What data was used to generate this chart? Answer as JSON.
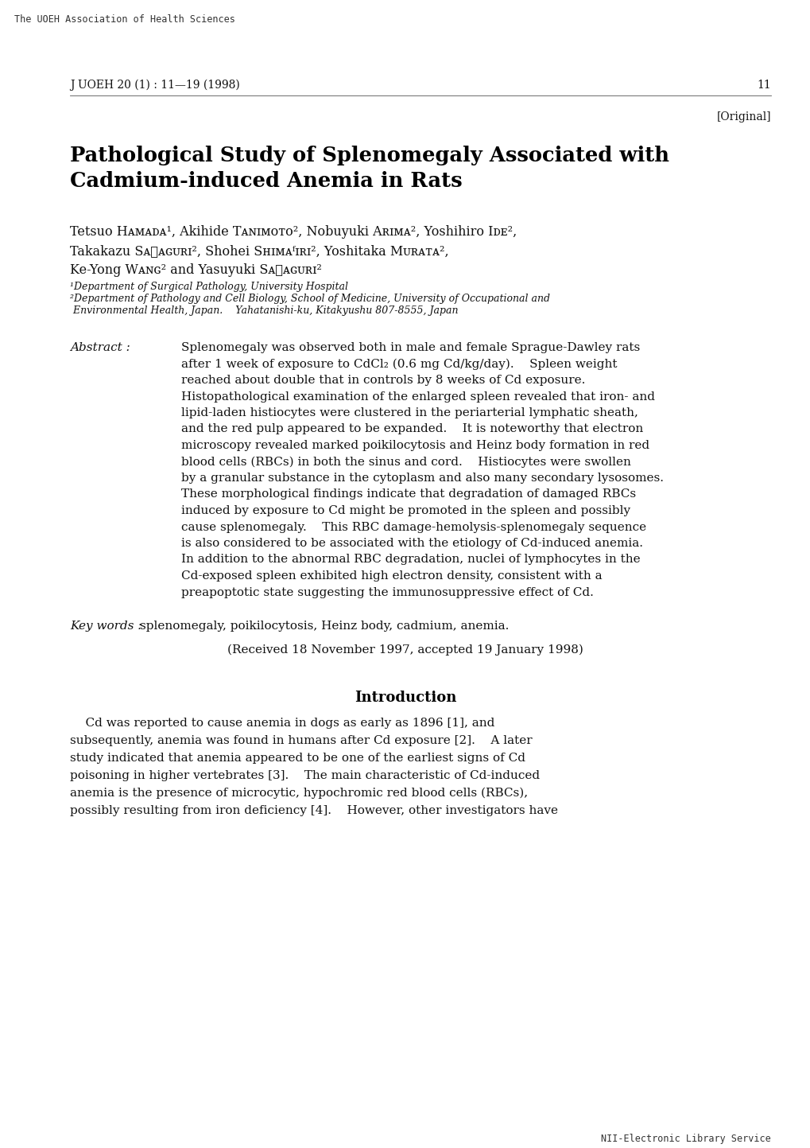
{
  "bg_color": "#ffffff",
  "header_left": "The UOEH Association of Health Sciences",
  "journal_ref": "J UOEH 20 (1) : 11—19 (1998)",
  "page_num": "11",
  "original_tag": "[Original]",
  "title_line1": "Pathological Study of Splenomegaly Associated with",
  "title_line2": "Cadmium-induced Anemia in Rats",
  "author1": "Tetsuo Hᴀᴍᴀᴅᴀ¹, Akihide Tᴀɴɪᴍᴏᴛᴏ², Nobuyuki Aʀɪᴍᴀ², Yoshihiro Iᴅᴇ²,",
  "author2": "Takakazu Sᴀᶏᴀɢᴜʀɪ², Shohei Sʜɪᴍᴀᶠɪʀɪ², Yoshitaka Mᴜʀᴀᴛᴀ²,",
  "author3": "Ke-Yong Wᴀɴɢ² and Yasuyuki Sᴀᶏᴀɢᴜʀɪ²",
  "affil1": "¹Department of Surgical Pathology, University Hospital",
  "affil2": "²Department of Pathology and Cell Biology, School of Medicine, University of Occupational and",
  "affil3": " Environmental Health, Japan.    Yahatanishi-ku, Kitakyushu 807-8555, Japan",
  "abstract_label": "Abstract :",
  "abstract_lines": [
    "Splenomegaly was observed both in male and female Sprague-Dawley rats",
    "after 1 week of exposure to CdCl₂ (0.6 mg Cd/kg/day).    Spleen weight",
    "reached about double that in controls by 8 weeks of Cd exposure.",
    "Histopathological examination of the enlarged spleen revealed that iron- and",
    "lipid-laden histiocytes were clustered in the periarterial lymphatic sheath,",
    "and the red pulp appeared to be expanded.    It is noteworthy that electron",
    "microscopy revealed marked poikilocytosis and Heinz body formation in red",
    "blood cells (RBCs) in both the sinus and cord.    Histiocytes were swollen",
    "by a granular substance in the cytoplasm and also many secondary lysosomes.",
    "These morphological findings indicate that degradation of damaged RBCs",
    "induced by exposure to Cd might be promoted in the spleen and possibly",
    "cause splenomegaly.    This RBC damage-hemolysis-splenomegaly sequence",
    "is also considered to be associated with the etiology of Cd-induced anemia.",
    "In addition to the abnormal RBC degradation, nuclei of lymphocytes in the",
    "Cd-exposed spleen exhibited high electron density, consistent with a",
    "preapoptotic state suggesting the immunosuppressive effect of Cd."
  ],
  "keywords_label": "Key words :",
  "keywords_text": "splenomegaly, poikilocytosis, Heinz body, cadmium, anemia.",
  "received_text": "(Received 18 November 1997, accepted 19 January 1998)",
  "intro_title": "Introduction",
  "intro_lines": [
    "    Cd was reported to cause anemia in dogs as early as 1896 [1], and",
    "subsequently, anemia was found in humans after Cd exposure [2].    A later",
    "study indicated that anemia appeared to be one of the earliest signs of Cd",
    "poisoning in higher vertebrates [3].    The main characteristic of Cd-induced",
    "anemia is the presence of microcytic, hypochromic red blood cells (RBCs),",
    "possibly resulting from iron deficiency [4].    However, other investigators have"
  ],
  "footer_right": "NII-Electronic Library Service"
}
